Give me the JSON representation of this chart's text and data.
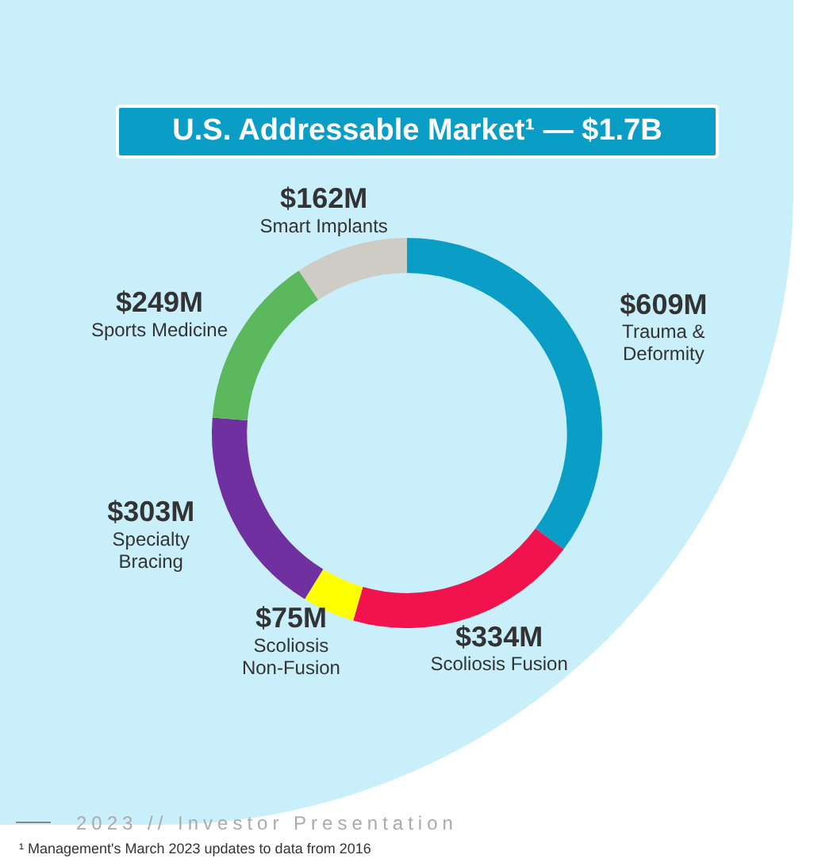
{
  "chart_data": {
    "type": "donut",
    "title": "U.S. Addressable Market¹ — $1.7B",
    "categories": [
      "Trauma & Deformity",
      "Scoliosis Fusion",
      "Scoliosis Non-Fusion",
      "Specialty Bracing",
      "Sports Medicine",
      "Smart Implants"
    ],
    "values": [
      609,
      334,
      75,
      303,
      249,
      162
    ],
    "value_labels": [
      "$609M",
      "$334M",
      "$75M",
      "$303M",
      "$249M",
      "$162M"
    ],
    "colors": [
      "#0a9ec7",
      "#f0134d",
      "#ffff00",
      "#7030a0",
      "#5cb85c",
      "#cfcbc5"
    ],
    "legend": false,
    "annotations": [
      "2023 // Investor Presentation",
      "¹ Management's March 2023 updates to data from 2016"
    ]
  }
}
